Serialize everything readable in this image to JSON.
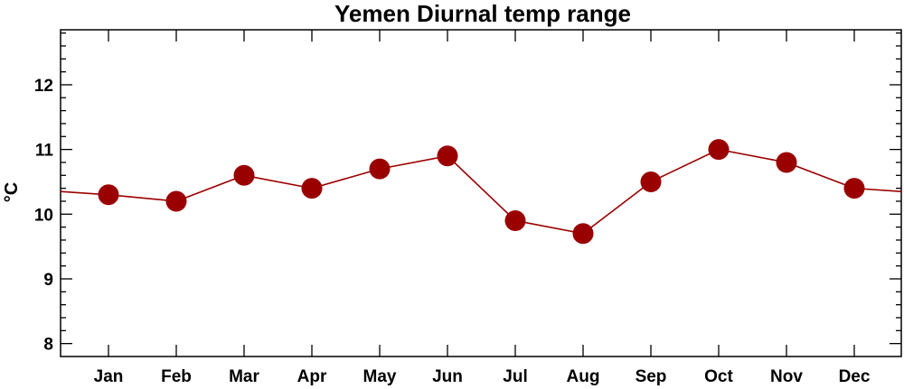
{
  "chart_data": {
    "type": "line",
    "title": "Yemen Diurnal temp range",
    "xlabel": "",
    "ylabel": "°C",
    "categories": [
      "Jan",
      "Feb",
      "Mar",
      "Apr",
      "May",
      "Jun",
      "Jul",
      "Aug",
      "Sep",
      "Oct",
      "Nov",
      "Dec"
    ],
    "series": [
      {
        "values": [
          10.3,
          10.2,
          10.6,
          10.4,
          10.7,
          10.9,
          9.9,
          9.7,
          10.5,
          11.0,
          10.8,
          10.4
        ]
      }
    ],
    "ylim": [
      7.8,
      12.85
    ],
    "yticks": [
      8,
      9,
      10,
      11,
      12
    ],
    "grid": false,
    "legend": "none",
    "colors": {
      "series": "#9b0000",
      "axis": "#000000"
    }
  }
}
